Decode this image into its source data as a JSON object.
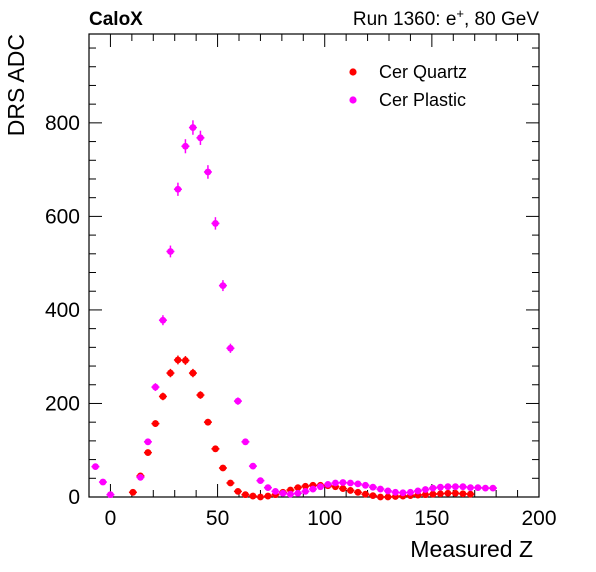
{
  "header": {
    "left": "CaloX",
    "run": "Run 1360: e",
    "sup": "+",
    "rest": ", 80 GeV"
  },
  "chart_data": {
    "type": "scatter",
    "xlabel": "Measured Z",
    "ylabel": "DRS ADC",
    "xlim": [
      -10,
      200
    ],
    "ylim": [
      0,
      990
    ],
    "xticks": [
      0,
      50,
      100,
      150,
      200
    ],
    "yticks": [
      0,
      200,
      400,
      600,
      800
    ],
    "legend_position": "top-right",
    "grid": false,
    "series": [
      {
        "name": "Cer Quartz",
        "color": "#ff0000",
        "points": [
          [
            10.5,
            10
          ],
          [
            14,
            45
          ],
          [
            17.5,
            95
          ],
          [
            21,
            157
          ],
          [
            24.5,
            215
          ],
          [
            28,
            265
          ],
          [
            31.5,
            293
          ],
          [
            35,
            292
          ],
          [
            38.5,
            265
          ],
          [
            42,
            218
          ],
          [
            45.5,
            160
          ],
          [
            49,
            103
          ],
          [
            52.5,
            62
          ],
          [
            56,
            30
          ],
          [
            59.5,
            12
          ],
          [
            63,
            5
          ],
          [
            66.5,
            2
          ],
          [
            70,
            0
          ],
          [
            73.5,
            2
          ],
          [
            77,
            5
          ],
          [
            80.5,
            10
          ],
          [
            84,
            15
          ],
          [
            87.5,
            20
          ],
          [
            91,
            23
          ],
          [
            94.5,
            25
          ],
          [
            98,
            25
          ],
          [
            101.5,
            24
          ],
          [
            105,
            22
          ],
          [
            108.5,
            18
          ],
          [
            112,
            14
          ],
          [
            115.5,
            10
          ],
          [
            119,
            6
          ],
          [
            122.5,
            3
          ],
          [
            126,
            0
          ],
          [
            129.5,
            0
          ],
          [
            133,
            1
          ],
          [
            136.5,
            2
          ],
          [
            140,
            3
          ],
          [
            143.5,
            4
          ],
          [
            147,
            5
          ],
          [
            150.5,
            6
          ],
          [
            154,
            7
          ],
          [
            157.5,
            8
          ],
          [
            161,
            8
          ],
          [
            164.5,
            7
          ],
          [
            168,
            6
          ]
        ]
      },
      {
        "name": "Cer Plastic",
        "color": "#ff00ff",
        "points": [
          [
            -7,
            65
          ],
          [
            -3.5,
            32
          ],
          [
            0,
            5
          ],
          [
            14,
            42
          ],
          [
            17.5,
            118
          ],
          [
            21,
            235
          ],
          [
            24.5,
            378
          ],
          [
            28,
            525
          ],
          [
            31.5,
            658
          ],
          [
            35,
            750
          ],
          [
            38.5,
            790
          ],
          [
            42,
            768
          ],
          [
            45.5,
            695
          ],
          [
            49,
            585
          ],
          [
            52.5,
            452
          ],
          [
            56,
            318
          ],
          [
            59.5,
            205
          ],
          [
            63,
            118
          ],
          [
            66.5,
            66
          ],
          [
            70,
            35
          ],
          [
            73.5,
            20
          ],
          [
            77,
            12
          ],
          [
            80.5,
            8
          ],
          [
            84,
            6
          ],
          [
            87.5,
            8
          ],
          [
            91,
            12
          ],
          [
            94.5,
            17
          ],
          [
            98,
            22
          ],
          [
            101.5,
            27
          ],
          [
            105,
            30
          ],
          [
            108.5,
            31
          ],
          [
            112,
            30
          ],
          [
            115.5,
            28
          ],
          [
            119,
            25
          ],
          [
            122.5,
            21
          ],
          [
            126,
            17
          ],
          [
            129.5,
            13
          ],
          [
            133,
            10
          ],
          [
            136.5,
            9
          ],
          [
            140,
            10
          ],
          [
            143.5,
            13
          ],
          [
            147,
            16
          ],
          [
            150.5,
            19
          ],
          [
            154,
            21
          ],
          [
            157.5,
            22
          ],
          [
            161,
            22
          ],
          [
            164.5,
            22
          ],
          [
            168,
            20
          ],
          [
            171.5,
            20
          ],
          [
            175,
            19
          ],
          [
            178.5,
            19
          ]
        ]
      }
    ]
  }
}
